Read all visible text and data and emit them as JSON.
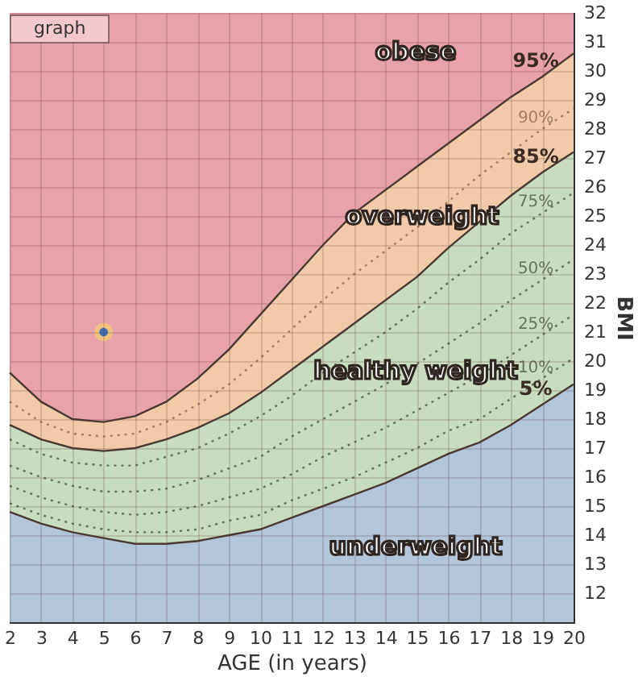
{
  "chart_data": {
    "type": "area",
    "xlabel": "AGE  (in years)",
    "ylabel": "BMI",
    "x": [
      2,
      3,
      4,
      5,
      6,
      7,
      8,
      9,
      10,
      11,
      12,
      13,
      14,
      15,
      16,
      17,
      18,
      19,
      20
    ],
    "xlim": [
      2,
      20
    ],
    "xticks": [
      2,
      3,
      4,
      5,
      6,
      7,
      8,
      9,
      10,
      11,
      12,
      13,
      14,
      15,
      16,
      17,
      18,
      19,
      20
    ],
    "ylim": [
      11,
      32
    ],
    "yticks": [
      12,
      13,
      14,
      15,
      16,
      17,
      18,
      19,
      20,
      21,
      22,
      23,
      24,
      25,
      26,
      27,
      28,
      29,
      30,
      31,
      32
    ],
    "grid": true,
    "bands": [
      {
        "axis": "y",
        "from": 11,
        "to": 32,
        "color": "#e8a2a9"
      }
    ],
    "series": [
      {
        "name": "95%",
        "color": "#f1cba9",
        "values": [
          19.6,
          18.6,
          18.0,
          17.9,
          18.1,
          18.6,
          19.4,
          20.4,
          21.6,
          22.8,
          24.0,
          25.1,
          25.9,
          26.7,
          27.5,
          28.3,
          29.1,
          29.8,
          30.6
        ]
      },
      {
        "name": "90%",
        "type": "line",
        "line_style": "dotted",
        "color": "#a27e63",
        "values": [
          18.6,
          17.9,
          17.5,
          17.4,
          17.5,
          17.9,
          18.5,
          19.2,
          20.1,
          21.1,
          22.1,
          23.0,
          23.8,
          24.6,
          25.5,
          26.4,
          27.2,
          28.0,
          28.7
        ]
      },
      {
        "name": "85%",
        "color": "#c8dcc0",
        "values": [
          17.8,
          17.3,
          17.0,
          16.9,
          17.0,
          17.3,
          17.7,
          18.2,
          18.9,
          19.7,
          20.5,
          21.3,
          22.1,
          22.9,
          23.9,
          24.8,
          25.7,
          26.5,
          27.2
        ]
      },
      {
        "name": "75%",
        "type": "line",
        "line_style": "dotted",
        "color": "#66745f",
        "values": [
          17.3,
          16.8,
          16.5,
          16.4,
          16.4,
          16.7,
          17.0,
          17.5,
          18.1,
          18.8,
          19.6,
          20.3,
          21.0,
          21.8,
          22.7,
          23.5,
          24.4,
          25.1,
          25.8
        ]
      },
      {
        "name": "50%",
        "type": "line",
        "line_style": "dotted",
        "color": "#66745f",
        "values": [
          16.4,
          16.0,
          15.7,
          15.5,
          15.5,
          15.6,
          15.9,
          16.3,
          16.7,
          17.4,
          18.0,
          18.6,
          19.2,
          19.9,
          20.6,
          21.3,
          22.1,
          22.8,
          23.5
        ]
      },
      {
        "name": "25%",
        "type": "line",
        "line_style": "dotted",
        "color": "#66745f",
        "values": [
          15.7,
          15.3,
          15.0,
          14.8,
          14.7,
          14.8,
          15.0,
          15.3,
          15.6,
          16.1,
          16.7,
          17.2,
          17.7,
          18.3,
          18.9,
          19.5,
          20.2,
          20.9,
          21.6
        ]
      },
      {
        "name": "10%",
        "type": "line",
        "line_style": "dotted",
        "color": "#66745f",
        "values": [
          15.1,
          14.7,
          14.4,
          14.2,
          14.1,
          14.1,
          14.2,
          14.5,
          14.7,
          15.2,
          15.6,
          16.0,
          16.5,
          17.0,
          17.6,
          18.0,
          18.7,
          19.4,
          20.1
        ]
      },
      {
        "name": "5%",
        "color": "#b3c5d8",
        "values": [
          14.8,
          14.4,
          14.1,
          13.9,
          13.7,
          13.7,
          13.8,
          14.0,
          14.2,
          14.6,
          15.0,
          15.4,
          15.8,
          16.3,
          16.8,
          17.2,
          17.8,
          18.5,
          19.2
        ]
      },
      {
        "type": "scatter",
        "marker": "circle",
        "color": "#3b6fb5",
        "x": [
          5
        ],
        "values": [
          21.0
        ]
      }
    ],
    "annotations": [
      "graph",
      "obese",
      "overweight",
      "healthy weight",
      "underweight"
    ]
  }
}
